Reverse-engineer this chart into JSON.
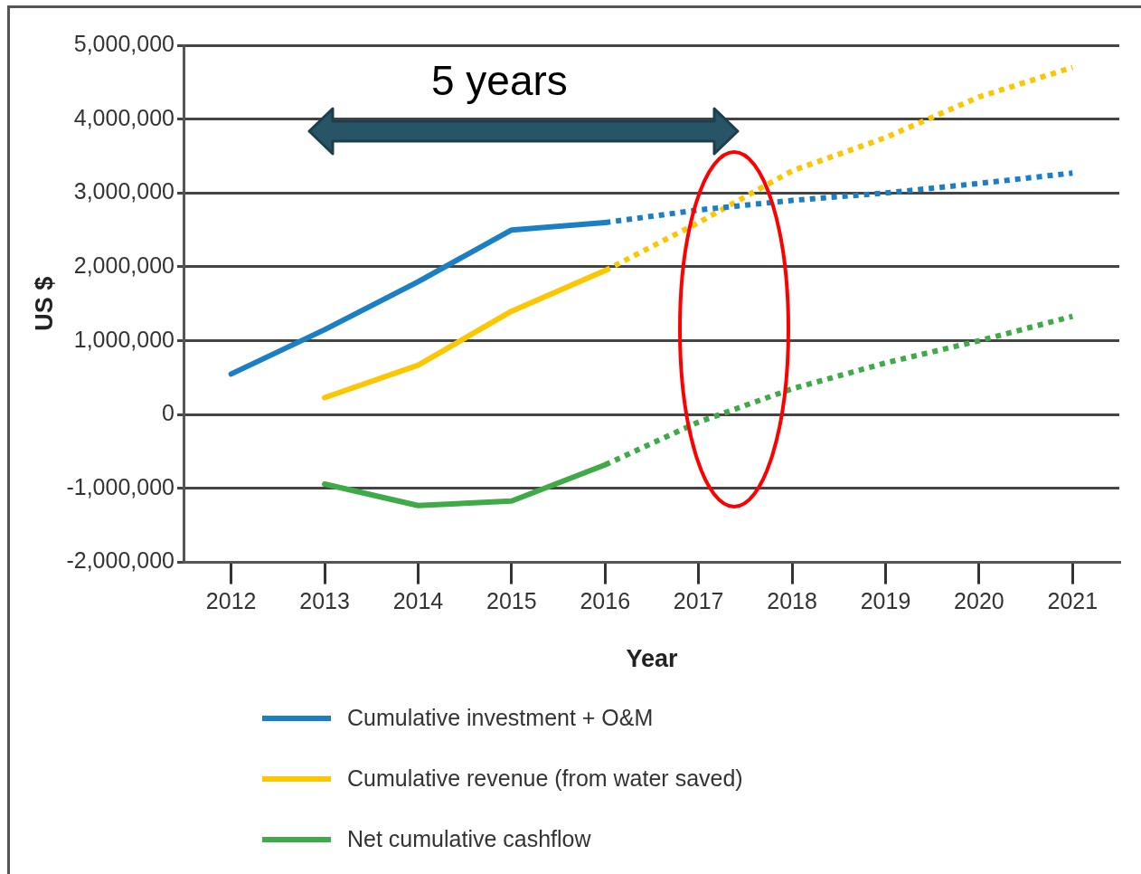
{
  "chart_data": {
    "type": "line",
    "xlabel": "Year",
    "ylabel": "US $",
    "categories": [
      "2012",
      "2013",
      "2014",
      "2015",
      "2016",
      "2017",
      "2018",
      "2019",
      "2020",
      "2021"
    ],
    "series": [
      {
        "name": "Cumulative investment + O&M",
        "color": "#1a7fc4",
        "values": [
          550000,
          1150000,
          1800000,
          2500000,
          2600000,
          null,
          null,
          null,
          null,
          null
        ]
      },
      {
        "name": "Cumulative revenue (from water saved)",
        "color": "#fcc600",
        "values": [
          null,
          230000,
          670000,
          1400000,
          1950000,
          null,
          null,
          null,
          null,
          null
        ]
      },
      {
        "name": "Net cumulative cashflow",
        "color": "#3faa48",
        "values": [
          null,
          -940000,
          -1230000,
          -1170000,
          -680000,
          null,
          null,
          null,
          null,
          null
        ]
      },
      {
        "color": "#1a7fc4",
        "line_style": "dotted",
        "values": [
          null,
          null,
          null,
          null,
          2600000,
          2770000,
          2900000,
          3000000,
          3130000,
          3270000
        ]
      },
      {
        "color": "#fcc600",
        "line_style": "dotted",
        "values": [
          null,
          null,
          null,
          null,
          1950000,
          2600000,
          3300000,
          3750000,
          4300000,
          4700000
        ]
      },
      {
        "color": "#3faa48",
        "line_style": "dotted",
        "values": [
          null,
          null,
          null,
          null,
          -680000,
          -100000,
          350000,
          700000,
          1000000,
          1330000
        ]
      }
    ],
    "ylim": [
      -2000000,
      5000000
    ],
    "yticks": [
      {
        "value": -2000000,
        "label": "-2,000,000"
      },
      {
        "value": -1000000,
        "label": "-1,000,000"
      },
      0,
      {
        "value": 1000000,
        "label": "1,000,000"
      },
      {
        "value": 2000000,
        "label": "2,000,000"
      },
      {
        "value": 3000000,
        "label": "3,000,000"
      },
      {
        "value": 4000000,
        "label": "4,000,000"
      },
      {
        "value": 5000000,
        "label": "5,000,000"
      }
    ],
    "grid": "y",
    "legend": "bottom",
    "marker": "none",
    "line_style": "solid",
    "annotations": [
      "5 years"
    ]
  }
}
